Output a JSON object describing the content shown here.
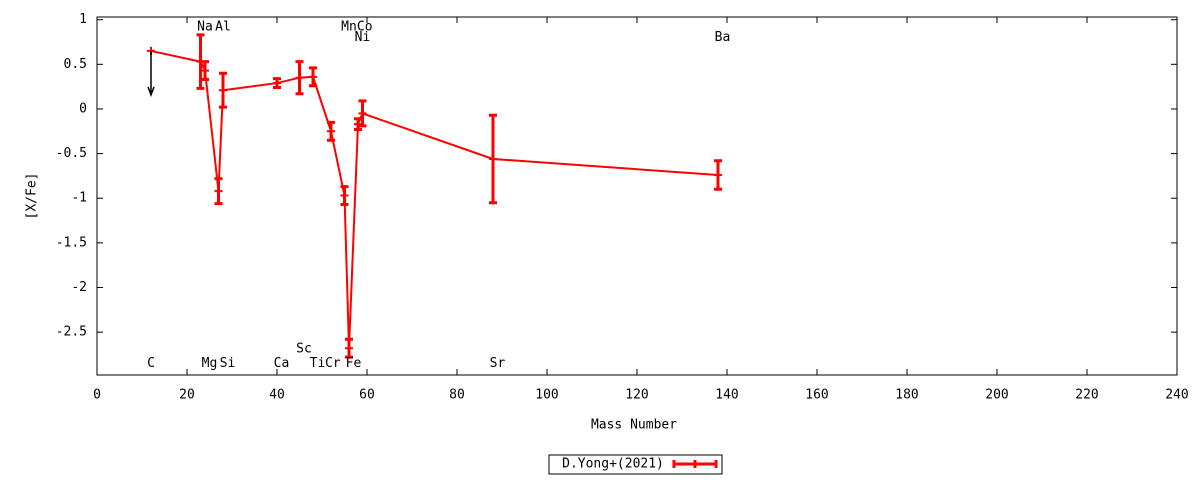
{
  "chart_data": {
    "type": "errorline",
    "xlabel": "Mass Number",
    "ylabel": "[X/Fe]",
    "xlim": [
      0,
      240
    ],
    "ylim": [
      -2.98,
      1.03
    ],
    "xticks": [
      0,
      20,
      40,
      60,
      80,
      100,
      120,
      140,
      160,
      180,
      200,
      220,
      240
    ],
    "yticks": [
      1,
      0.5,
      0,
      -0.5,
      -1,
      -1.5,
      -2,
      -2.5
    ],
    "series": [
      {
        "name": "D.Yong+(2021)",
        "color": "#ff0000",
        "x": [
          12,
          23,
          24,
          27,
          28,
          40,
          45,
          48,
          52,
          55,
          56,
          58,
          59,
          88,
          138
        ],
        "values": [
          0.65,
          0.53,
          0.43,
          -0.92,
          0.21,
          0.29,
          0.35,
          0.36,
          -0.25,
          -0.97,
          -2.68,
          -0.17,
          -0.05,
          -0.56,
          -0.74
        ],
        "errors": [
          null,
          0.3,
          0.1,
          0.14,
          0.19,
          0.05,
          0.18,
          0.1,
          0.1,
          0.1,
          0.1,
          0.06,
          0.14,
          0.49,
          0.16
        ],
        "upper_limit": [
          true,
          false,
          false,
          false,
          false,
          false,
          false,
          false,
          false,
          false,
          false,
          false,
          false,
          false,
          false
        ]
      }
    ],
    "annotations": [
      {
        "text": "C",
        "x": 12,
        "y": -2.85
      },
      {
        "text": "Na",
        "x": 24,
        "y": 0.92
      },
      {
        "text": "Al",
        "x": 28,
        "y": 0.92
      },
      {
        "text": "Mg",
        "x": 25,
        "y": -2.85
      },
      {
        "text": "Si",
        "x": 29,
        "y": -2.85
      },
      {
        "text": "Ca",
        "x": 41,
        "y": -2.85
      },
      {
        "text": "Sc",
        "x": 46,
        "y": -2.69
      },
      {
        "text": "Ti",
        "x": 49,
        "y": -2.85
      },
      {
        "text": "Cr",
        "x": 52.4,
        "y": -2.85
      },
      {
        "text": "Fe",
        "x": 57,
        "y": -2.85
      },
      {
        "text": "Mn",
        "x": 56,
        "y": 0.92
      },
      {
        "text": "Co",
        "x": 59.5,
        "y": 0.92
      },
      {
        "text": "Ni",
        "x": 59,
        "y": 0.8
      },
      {
        "text": "Sr",
        "x": 89,
        "y": -2.85
      },
      {
        "text": "Ba",
        "x": 139,
        "y": 0.8
      }
    ]
  }
}
